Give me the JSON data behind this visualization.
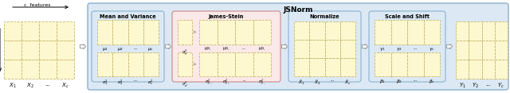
{
  "title": "JSNorm",
  "bg_blue": "#dce9f5",
  "bg_pink": "#fbe8e8",
  "bg_cell": "#fdf8d0",
  "cell_ec": "#c8b86a",
  "blue_ec": "#8ab0cc",
  "pink_ec": "#cc8888",
  "text_color": "#222222",
  "input_x_labels": [
    "$X_1$",
    "$X_2$",
    "...",
    "$X_c$"
  ],
  "mv_top_labels": [
    "$\\mu_1$",
    "$\\mu_2$",
    "...",
    "$\\mu_c$"
  ],
  "mv_bot_labels": [
    "$\\sigma_1^2$",
    "$\\sigma_2^2$",
    "...",
    "$\\sigma_c^2$"
  ],
  "js_top_labels": [
    "$\\mu_{JS_1}$",
    "$\\mu_{JS_2}$",
    "...",
    "$\\mu_{JS_c}$"
  ],
  "js_bot_labels": [
    "$\\sigma^2_{JS_1}$",
    "$\\sigma^2_{JS_2}$",
    "...",
    "$\\sigma^2_{JS_c}$"
  ],
  "js_scalar_top": "$\\sigma^2_{\\mu}$",
  "js_scalar_bot": "$\\sigma^2_{\\sigma^2}$",
  "norm_labels": [
    "$\\hat{X}_1$",
    "$\\hat{X}_2$",
    "...",
    "$\\hat{X}_c$"
  ],
  "ss_top_labels": [
    "$\\gamma_1$",
    "$\\gamma_2$",
    "...",
    "$\\gamma_c$"
  ],
  "ss_bot_labels": [
    "$\\beta_1$",
    "$\\beta_2$",
    "...",
    "$\\beta_c$"
  ],
  "out_labels": [
    "$Y_1$",
    "$Y_2$",
    "...",
    "$Y_c$"
  ]
}
